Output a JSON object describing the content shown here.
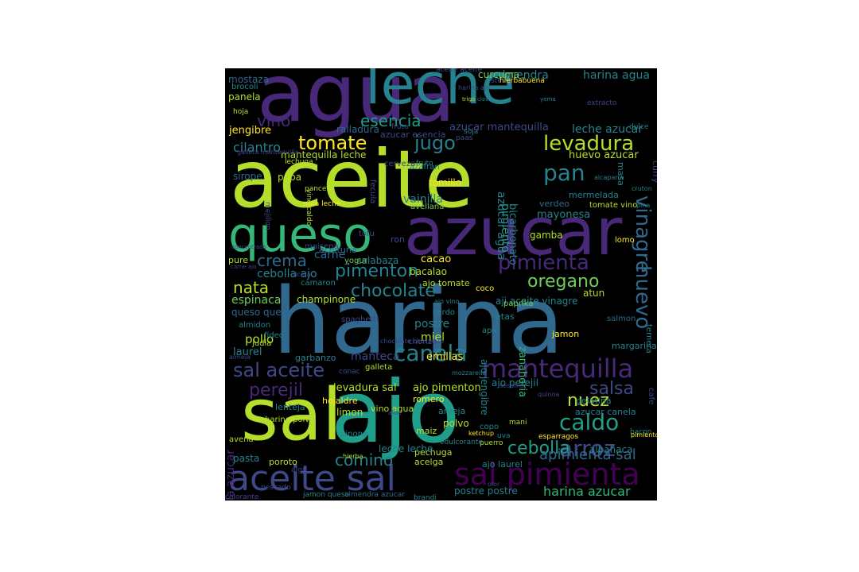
{
  "palette": [
    "#440154",
    "#482878",
    "#3e4989",
    "#31688e",
    "#26828e",
    "#1f9e89",
    "#35b779",
    "#6ece58",
    "#b5de2b",
    "#fde725"
  ],
  "words": [
    {
      "text": "aceite",
      "color": "#b5de2b"
    },
    {
      "text": "harina",
      "color": "#31688e"
    },
    {
      "text": "agua",
      "color": "#482878"
    },
    {
      "text": "leche",
      "color": "#26828e"
    },
    {
      "text": "sal",
      "color": "#b5de2b"
    },
    {
      "text": "ajo",
      "color": "#1f9e89"
    },
    {
      "text": "azucar",
      "color": "#482878"
    },
    {
      "text": "queso",
      "color": "#35b779"
    },
    {
      "text": "aceite sal",
      "color": "#3e4989"
    },
    {
      "text": "sal pimienta",
      "color": "#440154"
    },
    {
      "text": "mantequilla",
      "color": "#482878"
    },
    {
      "text": "pimienta",
      "color": "#482878"
    },
    {
      "text": "huevo",
      "color": "#31688e"
    },
    {
      "text": "vinagre",
      "color": "#31688e"
    },
    {
      "text": "canela",
      "color": "#26828e"
    },
    {
      "text": "sal aceite",
      "color": "#3e4989"
    },
    {
      "text": "caldo",
      "color": "#1f9e89"
    },
    {
      "text": "arroz",
      "color": "#3e4989"
    },
    {
      "text": "pan",
      "color": "#26828e"
    },
    {
      "text": "jugo",
      "color": "#26828e"
    },
    {
      "text": "levadura",
      "color": "#b5de2b"
    },
    {
      "text": "tomate",
      "color": "#fde725"
    },
    {
      "text": "esencia",
      "color": "#1f9e89"
    },
    {
      "text": "vino",
      "color": "#482878"
    },
    {
      "text": "chocolate",
      "color": "#26828e"
    },
    {
      "text": "pimenton",
      "color": "#26828e"
    },
    {
      "text": "oregano",
      "color": "#6ece58"
    },
    {
      "text": "salsa",
      "color": "#3e4989"
    },
    {
      "text": "perejil",
      "color": "#482878"
    },
    {
      "text": "nuez",
      "color": "#b5de2b"
    },
    {
      "text": "cebolla",
      "color": "#1f9e89"
    },
    {
      "text": "comino",
      "color": "#26828e"
    },
    {
      "text": "apimienta sal",
      "color": "#31688e"
    },
    {
      "text": "harina azucar",
      "color": "#35b779"
    },
    {
      "text": "crema",
      "color": "#31688e"
    },
    {
      "text": "nata",
      "color": "#b5de2b"
    },
    {
      "text": "almendra",
      "color": "#26828e"
    },
    {
      "text": "harina agua",
      "color": "#26828e"
    },
    {
      "text": "curcuma",
      "color": "#6ece58"
    },
    {
      "text": "mostaza",
      "color": "#31688e"
    },
    {
      "text": "panela",
      "color": "#b5de2b"
    },
    {
      "text": "jengibre",
      "color": "#fde725"
    },
    {
      "text": "cilantro",
      "color": "#26828e"
    },
    {
      "text": "azucar mantequilla",
      "color": "#3e4989"
    },
    {
      "text": "leche azucar",
      "color": "#26828e"
    },
    {
      "text": "huevo azucar",
      "color": "#b5de2b"
    },
    {
      "text": "mantequilla leche",
      "color": "#b5de2b"
    },
    {
      "text": "ralladura",
      "color": "#31688e"
    },
    {
      "text": "azucar esencia",
      "color": "#3e4989"
    },
    {
      "text": "lechuga",
      "color": "#b5de2b"
    },
    {
      "text": "sirope",
      "color": "#31688e"
    },
    {
      "text": "papa",
      "color": "#b5de2b"
    },
    {
      "text": "panceta",
      "color": "#b5de2b"
    },
    {
      "text": "tomillo",
      "color": "#fde725"
    },
    {
      "text": "pimiento",
      "color": "#1f9e89"
    },
    {
      "text": "azucar agua",
      "color": "#26828e"
    },
    {
      "text": "vainilla",
      "color": "#26828e"
    },
    {
      "text": "nata leche",
      "color": "#fde725"
    },
    {
      "text": "vino caldo",
      "color": "#b5de2b"
    },
    {
      "text": "avellana",
      "color": "#6ece58"
    },
    {
      "text": "bicarbonato",
      "color": "#26828e"
    },
    {
      "text": "verdeo",
      "color": "#31688e"
    },
    {
      "text": "mayonesa",
      "color": "#26828e"
    },
    {
      "text": "mermelada",
      "color": "#26828e"
    },
    {
      "text": "tomate vino",
      "color": "#b5de2b"
    },
    {
      "text": "gamba",
      "color": "#b5de2b"
    },
    {
      "text": "lomo",
      "color": "#fde725"
    },
    {
      "text": "harina levadura",
      "color": "#31688e"
    },
    {
      "text": "carne",
      "color": "#31688e"
    },
    {
      "text": "cacao",
      "color": "#fde725"
    },
    {
      "text": "calabaza",
      "color": "#26828e"
    },
    {
      "text": "aceituna",
      "color": "#31688e"
    },
    {
      "text": "yogur",
      "color": "#6ece58"
    },
    {
      "text": "ron",
      "color": "#3e4989"
    },
    {
      "text": "pure",
      "color": "#b5de2b"
    },
    {
      "text": "cebolla ajo",
      "color": "#26828e"
    },
    {
      "text": "bacalao",
      "color": "#b5de2b"
    },
    {
      "text": "ajo tomate",
      "color": "#b5de2b"
    },
    {
      "text": "camaron",
      "color": "#26828e"
    },
    {
      "text": "champinone",
      "color": "#b5de2b"
    },
    {
      "text": "coco",
      "color": "#fde725"
    },
    {
      "text": "aji aceite vinagre",
      "color": "#26828e"
    },
    {
      "text": "atun",
      "color": "#b5de2b"
    },
    {
      "text": "espinaca",
      "color": "#6ece58"
    },
    {
      "text": "queso queso",
      "color": "#31688e"
    },
    {
      "text": "almidon",
      "color": "#26828e"
    },
    {
      "text": "pollo",
      "color": "#b5de2b"
    },
    {
      "text": "postre",
      "color": "#26828e"
    },
    {
      "text": "miel",
      "color": "#b5de2b"
    },
    {
      "text": "apio",
      "color": "#26828e"
    },
    {
      "text": "cerdo",
      "color": "#26828e"
    },
    {
      "text": "etas",
      "color": "#26828e"
    },
    {
      "text": "paprika",
      "color": "#6ece58"
    },
    {
      "text": "zanahoria",
      "color": "#35b779"
    },
    {
      "text": "jamon",
      "color": "#fde725"
    },
    {
      "text": "salmon",
      "color": "#31688e"
    },
    {
      "text": "ternera",
      "color": "#26828e"
    },
    {
      "text": "margarina",
      "color": "#26828e"
    },
    {
      "text": "laurel",
      "color": "#26828e"
    },
    {
      "text": "judia",
      "color": "#b5de2b"
    },
    {
      "text": "fideo",
      "color": "#26828e"
    },
    {
      "text": "chorizo",
      "color": "#3e4989"
    },
    {
      "text": "garbanzo",
      "color": "#26828e"
    },
    {
      "text": "emillas",
      "color": "#fde725"
    },
    {
      "text": "manteca",
      "color": "#3e4989"
    },
    {
      "text": "galleta",
      "color": "#b5de2b"
    },
    {
      "text": "ajo jengibre",
      "color": "#26828e"
    },
    {
      "text": "ajo perejil",
      "color": "#26828e"
    },
    {
      "text": "levadura sal",
      "color": "#b5de2b"
    },
    {
      "text": "ajo pimenton",
      "color": "#b5de2b"
    },
    {
      "text": "gelatina",
      "color": "#26828e"
    },
    {
      "text": "azucar canela",
      "color": "#26828e"
    },
    {
      "text": "hojaldre",
      "color": "#fde725"
    },
    {
      "text": "lenteja",
      "color": "#26828e"
    },
    {
      "text": "limon",
      "color": "#b5de2b"
    },
    {
      "text": "romero",
      "color": "#fde725"
    },
    {
      "text": "vino agua",
      "color": "#b5de2b"
    },
    {
      "text": "arveja",
      "color": "#26828e"
    },
    {
      "text": "polvo",
      "color": "#b5de2b"
    },
    {
      "text": "maiz",
      "color": "#b5de2b"
    },
    {
      "text": "harina polvo",
      "color": "#b5de2b"
    },
    {
      "text": "avena",
      "color": "#b5de2b"
    },
    {
      "text": "pinone",
      "color": "#26828e"
    },
    {
      "text": "pasta",
      "color": "#26828e"
    },
    {
      "text": "poroto",
      "color": "#b5de2b"
    },
    {
      "text": "pechuga",
      "color": "#b5de2b"
    },
    {
      "text": "acelga",
      "color": "#b5de2b"
    },
    {
      "text": "ajo laurel",
      "color": "#26828e"
    },
    {
      "text": "albahaca",
      "color": "#26828e"
    },
    {
      "text": "leche leche",
      "color": "#26828e"
    },
    {
      "text": "pescado",
      "color": "#3e4989"
    },
    {
      "text": "postre postre",
      "color": "#26828e"
    },
    {
      "text": "brandi",
      "color": "#26828e"
    },
    {
      "text": "jamon queso",
      "color": "#26828e"
    },
    {
      "text": "almendra azucar",
      "color": "#31688e"
    },
    {
      "text": "colorante",
      "color": "#3e4989"
    },
    {
      "text": "mantequilla azucar",
      "color": "#482878"
    },
    {
      "text": "stevia",
      "color": "#3e4989"
    },
    {
      "text": "hierbabuena",
      "color": "#fde725"
    },
    {
      "text": "trigo",
      "color": "#b5de2b"
    },
    {
      "text": "clavo",
      "color": "#26828e"
    },
    {
      "text": "yema",
      "color": "#26828e"
    },
    {
      "text": "extracto",
      "color": "#3e4989"
    },
    {
      "text": "hoja",
      "color": "#b5de2b"
    },
    {
      "text": "brocoli",
      "color": "#26828e"
    },
    {
      "text": "azafran",
      "color": "#26828e"
    },
    {
      "text": "fecula",
      "color": "#3e4989"
    },
    {
      "text": "fruta",
      "color": "#3e4989"
    },
    {
      "text": "soja",
      "color": "#26828e"
    },
    {
      "text": "dulce",
      "color": "#26828e"
    },
    {
      "text": "curry",
      "color": "#3e4989"
    },
    {
      "text": "alcaparra",
      "color": "#26828e"
    },
    {
      "text": "masa",
      "color": "#26828e"
    },
    {
      "text": "cerveza",
      "color": "#3e4989"
    },
    {
      "text": "fruto",
      "color": "#26828e"
    },
    {
      "text": "paas",
      "color": "#3e4989"
    },
    {
      "text": "cruton",
      "color": "#26828e"
    },
    {
      "text": "pina",
      "color": "#26828e"
    },
    {
      "text": "tofu",
      "color": "#3e4989"
    },
    {
      "text": "maicena",
      "color": "#3e4989"
    },
    {
      "text": "concentrado",
      "color": "#3e4989"
    },
    {
      "text": "carne ajo",
      "color": "#3e4989"
    },
    {
      "text": "mejillon",
      "color": "#3e4989"
    },
    {
      "text": "ajo vino",
      "color": "#26828e"
    },
    {
      "text": "spaghetti",
      "color": "#3e4989"
    },
    {
      "text": "almeja",
      "color": "#3e4989"
    },
    {
      "text": "mozzarella",
      "color": "#26828e"
    },
    {
      "text": "conac",
      "color": "#3e4989"
    },
    {
      "text": "sesamo",
      "color": "#3e4989"
    },
    {
      "text": "copo",
      "color": "#26828e"
    },
    {
      "text": "mani",
      "color": "#b5de2b"
    },
    {
      "text": "ketchup",
      "color": "#fde725"
    },
    {
      "text": "uva",
      "color": "#26828e"
    },
    {
      "text": "puerro",
      "color": "#b5de2b"
    },
    {
      "text": "esparragos",
      "color": "#fde725"
    },
    {
      "text": "edulcorante",
      "color": "#26828e"
    },
    {
      "text": "alga",
      "color": "#3e4989"
    },
    {
      "text": "hierba",
      "color": "#b5de2b"
    },
    {
      "text": "bacon",
      "color": "#26828e"
    },
    {
      "text": "pimiento pimiento",
      "color": "#fde725"
    },
    {
      "text": "cafe",
      "color": "#3e4989"
    },
    {
      "text": "olor",
      "color": "#3e4989"
    },
    {
      "text": "aceite aceite",
      "color": "#3e4989"
    },
    {
      "text": "galleta mantequilla",
      "color": "#3e4989"
    },
    {
      "text": "chocolate chocolate",
      "color": "#3e4989"
    },
    {
      "text": "ricota",
      "color": "#3e4989"
    },
    {
      "text": "harina ajo",
      "color": "#3e4989"
    },
    {
      "text": "quinoa",
      "color": "#3e4989"
    },
    {
      "text": "aloe",
      "color": "#3e4989"
    }
  ]
}
